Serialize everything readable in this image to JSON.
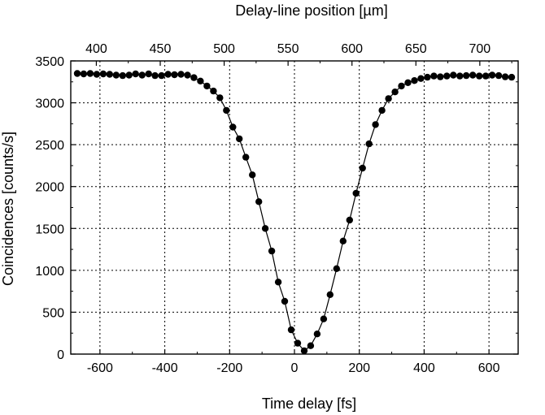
{
  "chart_data": {
    "type": "scatter",
    "title": "",
    "xlabel": "Time delay [fs]",
    "ylabel": "Coincidences [counts/s]",
    "x2label": "Delay-line position [µm]",
    "xlim": [
      -690,
      690
    ],
    "ylim": [
      0,
      3500
    ],
    "x2lim": [
      380,
      730
    ],
    "xticks": [
      -600,
      -400,
      -200,
      0,
      200,
      400,
      600
    ],
    "xtick_labels": [
      "-600",
      "-400",
      "-200",
      "0",
      "200",
      "400",
      "600"
    ],
    "yticks": [
      0,
      500,
      1000,
      1500,
      2000,
      2500,
      3000,
      3500
    ],
    "ytick_labels": [
      "0",
      "500",
      "1000",
      "1500",
      "2000",
      "2500",
      "3000",
      "3500"
    ],
    "x2ticks": [
      400,
      450,
      500,
      550,
      600,
      650,
      700
    ],
    "x2tick_labels": [
      "400",
      "450",
      "500",
      "550",
      "600",
      "650",
      "700"
    ],
    "grid": true,
    "marker_color": "#000000",
    "line_color": "#000000",
    "series": [
      {
        "x": [
          -670,
          -650,
          -630,
          -610,
          -590,
          -570,
          -550,
          -530,
          -510,
          -490,
          -470,
          -450,
          -430,
          -410,
          -390,
          -370,
          -350,
          -330,
          -310,
          -290,
          -270,
          -250,
          -230,
          -210,
          -190,
          -170,
          -150,
          -130,
          -110,
          -90,
          -70,
          -50,
          -30,
          -10,
          10,
          30,
          50,
          70,
          90,
          110,
          130,
          150,
          170,
          190,
          210,
          230,
          250,
          270,
          290,
          310,
          330,
          350,
          370,
          390,
          410,
          430,
          450,
          470,
          490,
          510,
          530,
          550,
          570,
          590,
          610,
          630,
          650,
          670
        ],
        "y": [
          3350,
          3345,
          3350,
          3340,
          3345,
          3340,
          3330,
          3325,
          3330,
          3345,
          3330,
          3345,
          3325,
          3325,
          3340,
          3335,
          3340,
          3330,
          3300,
          3260,
          3200,
          3140,
          3060,
          2910,
          2710,
          2570,
          2350,
          2140,
          1820,
          1500,
          1230,
          860,
          630,
          290,
          130,
          40,
          100,
          240,
          420,
          710,
          1020,
          1350,
          1600,
          1920,
          2220,
          2510,
          2740,
          2910,
          3050,
          3130,
          3200,
          3240,
          3265,
          3290,
          3305,
          3320,
          3310,
          3320,
          3330,
          3320,
          3325,
          3330,
          3320,
          3320,
          3330,
          3325,
          3310,
          3305
        ]
      }
    ]
  }
}
